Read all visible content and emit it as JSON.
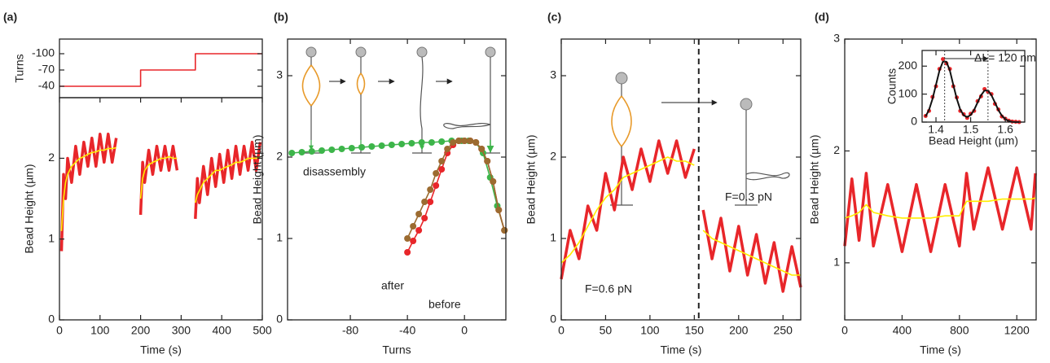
{
  "chart_data": [
    {
      "type": "line",
      "panel_label": "(a)",
      "ylabel": "Turns",
      "x": [
        0,
        200,
        200,
        335,
        335,
        500
      ],
      "xlim": [
        0,
        500
      ],
      "ylim": [
        -19,
        -127
      ],
      "yticks": [
        -100,
        -70,
        -40
      ],
      "series": [
        {
          "color": "#e8262a",
          "style": "line",
          "values": [
            -40,
            -40,
            -70,
            -70,
            -100,
            -100
          ]
        }
      ]
    },
    {
      "type": "line",
      "xlabel": "Time (s)",
      "ylabel": "Bead Height (µm)",
      "x": [
        5,
        10,
        15,
        20,
        30,
        40,
        50,
        60,
        70,
        80,
        90,
        100,
        110,
        120,
        130,
        140,
        170,
        200,
        205,
        210,
        220,
        230,
        240,
        250,
        260,
        270,
        280,
        290,
        312,
        335,
        340,
        345,
        355,
        365,
        375,
        385,
        395,
        405,
        415,
        425,
        435,
        445,
        455,
        465,
        475,
        485,
        495
      ],
      "xlim": [
        0,
        500
      ],
      "xticks": [
        0,
        100,
        200,
        300,
        400,
        500
      ],
      "ylim": [
        0,
        2.75
      ],
      "yticks": [
        0,
        1,
        2
      ],
      "series": [
        {
          "color": "#e8262a",
          "style": "band",
          "values": [
            0.85,
            1.8,
            1.5,
            2.0,
            1.7,
            2.15,
            1.8,
            2.2,
            1.9,
            2.25,
            1.9,
            2.3,
            1.95,
            2.3,
            1.95,
            2.25,
            null,
            1.3,
            1.95,
            1.7,
            2.1,
            1.8,
            2.15,
            1.85,
            2.15,
            1.85,
            2.15,
            1.85,
            null,
            1.25,
            1.75,
            1.45,
            1.9,
            1.55,
            2.0,
            1.65,
            2.05,
            1.7,
            2.1,
            1.75,
            2.15,
            1.8,
            2.15,
            1.85,
            2.2,
            1.85,
            2.2
          ]
        },
        {
          "color": "#ffee00",
          "style": "line",
          "values": [
            1.1,
            1.5,
            1.7,
            1.8,
            1.9,
            1.95,
            2.0,
            2.02,
            2.05,
            2.07,
            2.08,
            2.1,
            2.1,
            2.12,
            2.12,
            2.13,
            null,
            1.5,
            1.75,
            1.85,
            1.92,
            1.95,
            1.97,
            2.0,
            2.0,
            2.02,
            2.0,
            2.0,
            null,
            1.45,
            1.55,
            1.6,
            1.7,
            1.75,
            1.8,
            1.85,
            1.85,
            1.88,
            1.9,
            1.92,
            1.95,
            1.95,
            1.97,
            2.0,
            2.0,
            2.0,
            2.02
          ]
        }
      ]
    },
    {
      "type": "line",
      "panel_label": "(b)",
      "xlabel": "Turns",
      "ylabel": "Bead Height (µm)",
      "xlim": [
        -124,
        29
      ],
      "xticks": [
        -80,
        -40,
        0
      ],
      "ylim": [
        0,
        3.45
      ],
      "yticks": [
        0,
        1,
        2,
        3
      ],
      "series": [
        {
          "color": "#3db54a",
          "style": "line+markers",
          "x": [
            -121,
            -114,
            -107,
            -100,
            -93,
            -86,
            -79,
            -72,
            -65,
            -58,
            -51,
            -44,
            -37,
            -30,
            -23,
            -16,
            -9,
            -2,
            3,
            8,
            13,
            18,
            23,
            28
          ],
          "values": [
            2.05,
            2.06,
            2.07,
            2.08,
            2.09,
            2.1,
            2.11,
            2.12,
            2.13,
            2.14,
            2.15,
            2.16,
            2.17,
            2.18,
            2.18,
            2.19,
            2.2,
            2.2,
            2.2,
            2.18,
            2.05,
            1.75,
            1.4,
            1.1
          ]
        },
        {
          "color": "#e8262a",
          "style": "line+markers",
          "x": [
            -40,
            -36,
            -32,
            -28,
            -24,
            -20,
            -16,
            -12,
            -8,
            -4,
            0,
            4,
            8,
            12,
            16,
            20,
            24,
            28
          ],
          "values": [
            0.83,
            0.97,
            1.1,
            1.25,
            1.45,
            1.65,
            1.85,
            2.05,
            2.15,
            2.2,
            2.2,
            2.2,
            2.18,
            2.1,
            1.95,
            1.7,
            1.35,
            1.1
          ]
        },
        {
          "color": "#9c6b30",
          "style": "line+markers",
          "x": [
            -40,
            -36,
            -32,
            -28,
            -24,
            -20,
            -16,
            -12,
            -8,
            -4,
            0,
            4,
            8,
            12,
            16,
            20,
            24,
            28
          ],
          "values": [
            1.0,
            1.15,
            1.3,
            1.45,
            1.6,
            1.8,
            1.95,
            2.1,
            2.18,
            2.2,
            2.2,
            2.2,
            2.18,
            2.1,
            1.95,
            1.7,
            1.35,
            1.1
          ]
        }
      ],
      "annotations": [
        {
          "text": "disassembly",
          "color": "#3db54a"
        },
        {
          "text": "after",
          "color": "#9c6b30"
        },
        {
          "text": "before",
          "color": "#e8262a"
        }
      ]
    },
    {
      "type": "line",
      "panel_label": "(c)",
      "xlabel": "Time (s)",
      "ylabel": "Bead Height (µm)",
      "x": [
        0,
        10,
        20,
        30,
        40,
        50,
        60,
        70,
        80,
        90,
        100,
        110,
        120,
        130,
        140,
        150,
        155,
        160,
        170,
        180,
        190,
        200,
        210,
        220,
        230,
        240,
        250,
        260,
        270
      ],
      "xlim": [
        0,
        270
      ],
      "xticks": [
        0,
        50,
        100,
        150,
        200,
        250
      ],
      "ylim": [
        0,
        3.45
      ],
      "yticks": [
        0,
        1,
        2,
        3
      ],
      "vline": 155,
      "series": [
        {
          "color": "#e8262a",
          "style": "band",
          "values": [
            0.5,
            1.1,
            0.75,
            1.4,
            1.1,
            1.8,
            1.35,
            2.0,
            1.6,
            2.1,
            1.7,
            2.2,
            1.8,
            2.2,
            1.75,
            2.1,
            null,
            1.35,
            0.75,
            1.25,
            0.6,
            1.15,
            0.55,
            1.05,
            0.45,
            0.95,
            0.35,
            0.9,
            0.4
          ]
        },
        {
          "color": "#ffee00",
          "style": "line",
          "values": [
            0.7,
            0.8,
            0.95,
            1.15,
            1.35,
            1.5,
            1.6,
            1.75,
            1.8,
            1.85,
            1.9,
            1.95,
            2.0,
            1.95,
            1.95,
            1.9,
            null,
            1.1,
            1.0,
            0.95,
            0.9,
            0.85,
            0.8,
            0.75,
            0.7,
            0.65,
            0.6,
            0.55,
            0.55
          ]
        }
      ],
      "annotations": [
        {
          "text": "F=0.6 pN",
          "color": "#222"
        },
        {
          "text": "F=0.3 pN",
          "color": "#222"
        }
      ]
    },
    {
      "type": "line",
      "panel_label": "(d)",
      "xlabel": "Time (s)",
      "ylabel": "Bead Height (µm)",
      "x": [
        0,
        50,
        100,
        150,
        200,
        300,
        400,
        500,
        600,
        700,
        800,
        850,
        900,
        1000,
        1100,
        1200,
        1300,
        1330
      ],
      "xlim": [
        0,
        1335
      ],
      "xticks": [
        0,
        400,
        800,
        1200
      ],
      "ylim": [
        0.49,
        3
      ],
      "yticks": [
        1,
        2,
        3
      ],
      "series": [
        {
          "color": "#e8262a",
          "style": "band",
          "values": [
            1.15,
            1.75,
            1.2,
            1.8,
            1.15,
            1.7,
            1.1,
            1.7,
            1.1,
            1.7,
            1.15,
            1.8,
            1.3,
            1.85,
            1.3,
            1.85,
            1.3,
            1.8
          ]
        },
        {
          "color": "#ffee00",
          "style": "line",
          "values": [
            1.4,
            1.42,
            1.45,
            1.52,
            1.45,
            1.42,
            1.4,
            1.4,
            1.4,
            1.42,
            1.42,
            1.55,
            1.55,
            1.55,
            1.57,
            1.57,
            1.57,
            1.58
          ]
        }
      ]
    },
    {
      "type": "line",
      "xlabel": "Bead Height (µm)",
      "ylabel": "Counts",
      "x": [
        1.37,
        1.38,
        1.39,
        1.4,
        1.41,
        1.42,
        1.43,
        1.44,
        1.45,
        1.46,
        1.47,
        1.48,
        1.49,
        1.5,
        1.51,
        1.52,
        1.53,
        1.54,
        1.55,
        1.56,
        1.57,
        1.58,
        1.59,
        1.6,
        1.61,
        1.62,
        1.63,
        1.64
      ],
      "xlim": [
        1.36,
        1.656
      ],
      "xticks": [
        1.4,
        1.5,
        1.6
      ],
      "ylim": [
        0,
        256
      ],
      "yticks": [
        0,
        100,
        200
      ],
      "markers": [
        1.425,
        1.55
      ],
      "series": [
        {
          "color": "#e8262a",
          "style": "markers",
          "values": [
            22,
            40,
            90,
            128,
            190,
            225,
            210,
            190,
            128,
            88,
            40,
            28,
            15,
            30,
            40,
            75,
            92,
            118,
            108,
            100,
            65,
            45,
            20,
            12,
            5,
            2,
            1,
            0
          ]
        },
        {
          "color": "#111111",
          "style": "line",
          "values": [
            20,
            44,
            83,
            133,
            184,
            216,
            216,
            184,
            133,
            83,
            45,
            24,
            18,
            25,
            44,
            70,
            96,
            113,
            113,
            96,
            70,
            43,
            23,
            10,
            4,
            1,
            0,
            0
          ]
        }
      ],
      "annotations": [
        {
          "text": "ΔL= 120 nm",
          "color": "#222"
        }
      ]
    }
  ]
}
